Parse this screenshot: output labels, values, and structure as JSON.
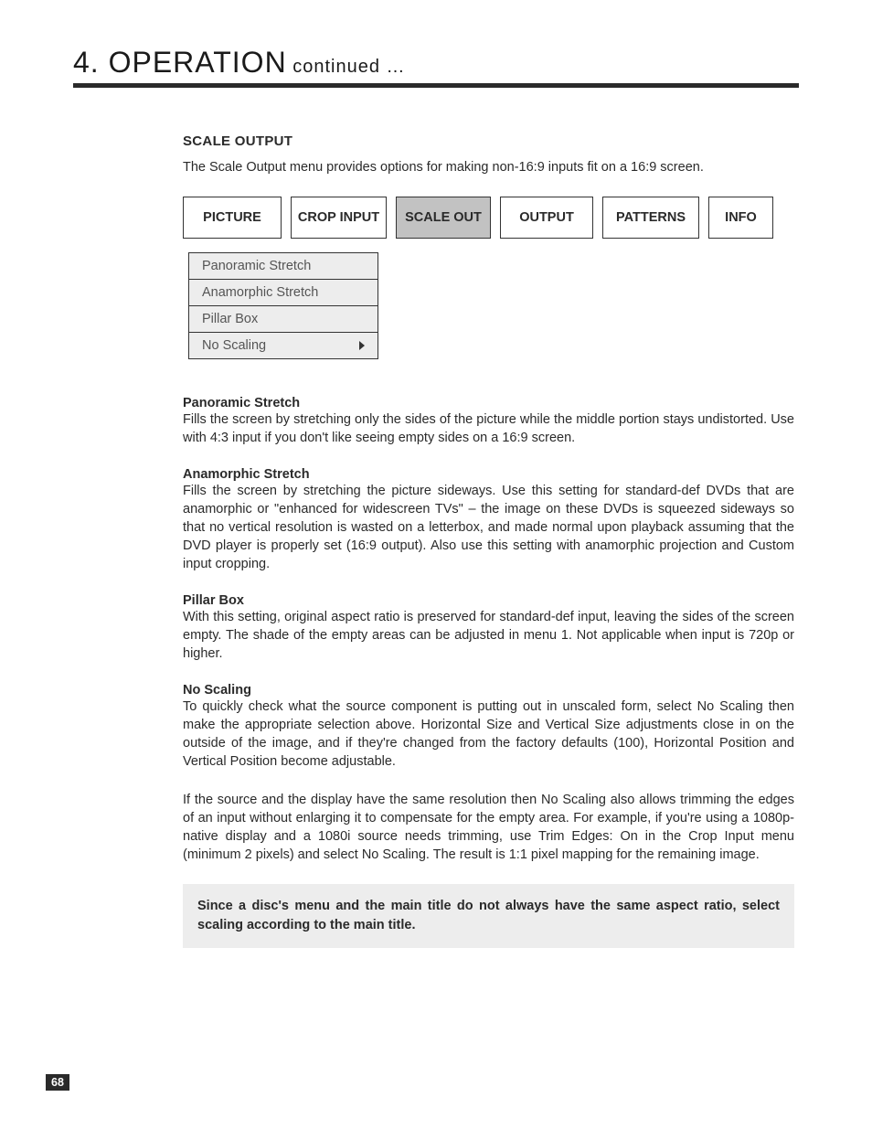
{
  "header": {
    "chapter": "4. OPERATION",
    "suffix": " continued …"
  },
  "section": {
    "title": "SCALE OUTPUT",
    "intro": "The Scale Output menu provides options for making non-16:9 inputs fit on a 16:9 screen."
  },
  "tabs": [
    {
      "label": "PICTURE",
      "active": false
    },
    {
      "label": "CROP INPUT",
      "active": false
    },
    {
      "label": "SCALE OUT",
      "active": true
    },
    {
      "label": "OUTPUT",
      "active": false
    },
    {
      "label": "PATTERNS",
      "active": false
    },
    {
      "label": "INFO",
      "active": false
    }
  ],
  "menu": [
    {
      "label": "Panoramic Stretch",
      "has_chevron": false
    },
    {
      "label": "Anamorphic Stretch",
      "has_chevron": false
    },
    {
      "label": "Pillar Box",
      "has_chevron": false
    },
    {
      "label": "No Scaling",
      "has_chevron": true
    }
  ],
  "paragraphs": [
    {
      "title": "Panoramic Stretch",
      "body": "Fills the screen by stretching only the sides of the picture while the middle portion stays undistorted. Use with 4:3 input if you don't like seeing empty sides on a 16:9 screen."
    },
    {
      "title": "Anamorphic Stretch",
      "body": "Fills the screen by stretching the picture sideways. Use this setting for standard-def DVDs that are anamorphic or \"enhanced for widescreen TVs\" – the image on these DVDs is squeezed sideways so that no vertical resolution is wasted on a letterbox, and made normal upon playback assuming that the DVD player is properly set (16:9 output). Also use this setting with anamorphic projection and Custom input cropping."
    },
    {
      "title": "Pillar Box",
      "body": "With this setting, original aspect ratio is preserved for standard-def input, leaving the sides of the screen empty. The shade of the empty areas can be adjusted in menu 1. Not applicable when input is 720p or higher."
    },
    {
      "title": "No Scaling",
      "body": "To quickly check what the source component is putting out in unscaled form, select No Scaling then make the appropriate selection above. Horizontal Size and Vertical Size adjustments close in on the outside of the image, and if they're changed from the factory defaults (100), Horizontal Position and Vertical Position become adjustable."
    }
  ],
  "extra_body": "If the source and the display have the same resolution then No Scaling also allows trimming the edges of an input without enlarging it to compensate for the empty area. For example, if you're using a 1080p-native display and a 1080i source needs trimming, use Trim Edges: On in the Crop Input menu (minimum 2 pixels) and select No Scaling. The result is 1:1 pixel mapping for the remaining image.",
  "note": "Since a disc's menu and the main title do not always have the same aspect ratio, select scaling according to the main title.",
  "page_number": "68"
}
